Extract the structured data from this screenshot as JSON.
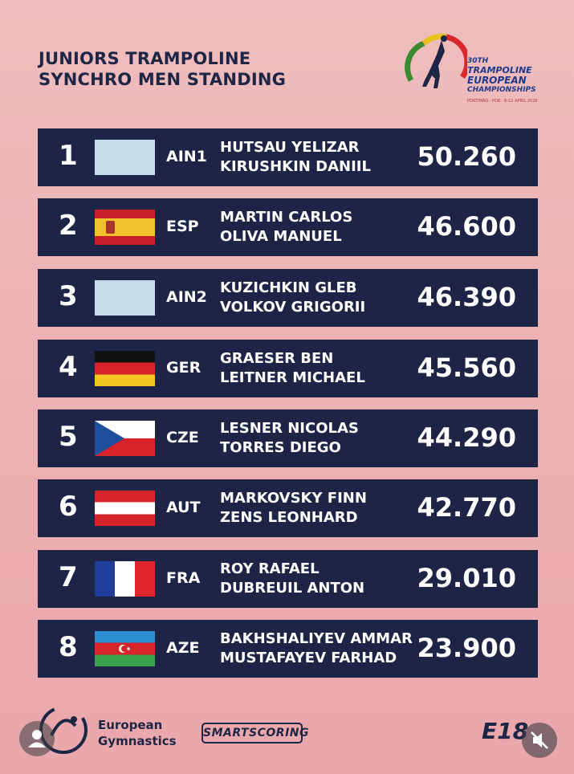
{
  "title": {
    "line1": "JUNIORS TRAMPOLINE",
    "line2": "SYNCHRO MEN STANDING"
  },
  "event_logo": {
    "line1": "30TH",
    "line2": "TRAMPOLINE",
    "line3": "EUROPEAN",
    "line4": "CHAMPIONSHIPS",
    "line5": "PORTIMÃO · POR · 6-12 APRIL 2026",
    "colors": [
      "#3a8a2f",
      "#e8c21c",
      "#d8262c"
    ]
  },
  "results": [
    {
      "rank": "1",
      "flag": "blank-flag-icon",
      "code": "AIN1",
      "athlete1": "HUTSAU YELIZAR",
      "athlete2": "KIRUSHKIN DANIIL",
      "score": "50.260"
    },
    {
      "rank": "2",
      "flag": "spain-flag-icon",
      "code": "ESP",
      "athlete1": "MARTIN CARLOS",
      "athlete2": "OLIVA MANUEL",
      "score": "46.600"
    },
    {
      "rank": "3",
      "flag": "blank-flag-icon",
      "code": "AIN2",
      "athlete1": "KUZICHKIN GLEB",
      "athlete2": "VOLKOV GRIGORII",
      "score": "46.390"
    },
    {
      "rank": "4",
      "flag": "germany-flag-icon",
      "code": "GER",
      "athlete1": "GRAESER BEN",
      "athlete2": "LEITNER MICHAEL",
      "score": "45.560"
    },
    {
      "rank": "5",
      "flag": "czech-flag-icon",
      "code": "CZE",
      "athlete1": "LESNER NICOLAS",
      "athlete2": "TORRES DIEGO",
      "score": "44.290"
    },
    {
      "rank": "6",
      "flag": "austria-flag-icon",
      "code": "AUT",
      "athlete1": "MARKOVSKY FINN",
      "athlete2": "ZENS LEONHARD",
      "score": "42.770"
    },
    {
      "rank": "7",
      "flag": "france-flag-icon",
      "code": "FRA",
      "athlete1": "ROY RAFAEL",
      "athlete2": "DUBREUIL ANTON",
      "score": "29.010"
    },
    {
      "rank": "8",
      "flag": "azerbaijan-flag-icon",
      "code": "AZE",
      "athlete1": "BAKHSHALIYEV AMMAR",
      "athlete2": "MUSTAFAYEV FARHAD",
      "score": "23.900"
    }
  ],
  "footer": {
    "eg_line1": "European",
    "eg_line2": "Gymnastics",
    "smartscoring": "SMARTSCORING",
    "e18": "E18"
  },
  "colors": {
    "row_bg": "#1d2446",
    "page_bg": "#eeb2b4",
    "text_dark": "#1e2646"
  }
}
